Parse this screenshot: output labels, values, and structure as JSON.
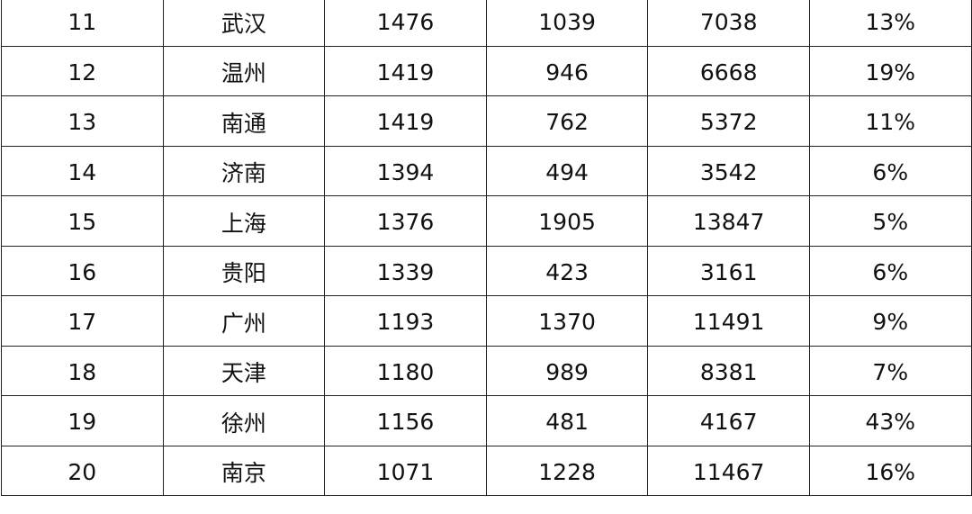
{
  "rows": [
    [
      "11",
      "武汉",
      "1476",
      "1039",
      "7038",
      "13%"
    ],
    [
      "12",
      "温州",
      "1419",
      "946",
      "6668",
      "19%"
    ],
    [
      "13",
      "南通",
      "1419",
      "762",
      "5372",
      "11%"
    ],
    [
      "14",
      "济南",
      "1394",
      "494",
      "3542",
      "6%"
    ],
    [
      "15",
      "上海",
      "1376",
      "1905",
      "13847",
      "5%"
    ],
    [
      "16",
      "贵阳",
      "1339",
      "423",
      "3161",
      "6%"
    ],
    [
      "17",
      "广州",
      "1193",
      "1370",
      "11491",
      "9%"
    ],
    [
      "18",
      "天津",
      "1180",
      "989",
      "8381",
      "7%"
    ],
    [
      "19",
      "徐州",
      "1156",
      "481",
      "4167",
      "43%"
    ],
    [
      "20",
      "南京",
      "1071",
      "1228",
      "11467",
      "16%"
    ]
  ]
}
